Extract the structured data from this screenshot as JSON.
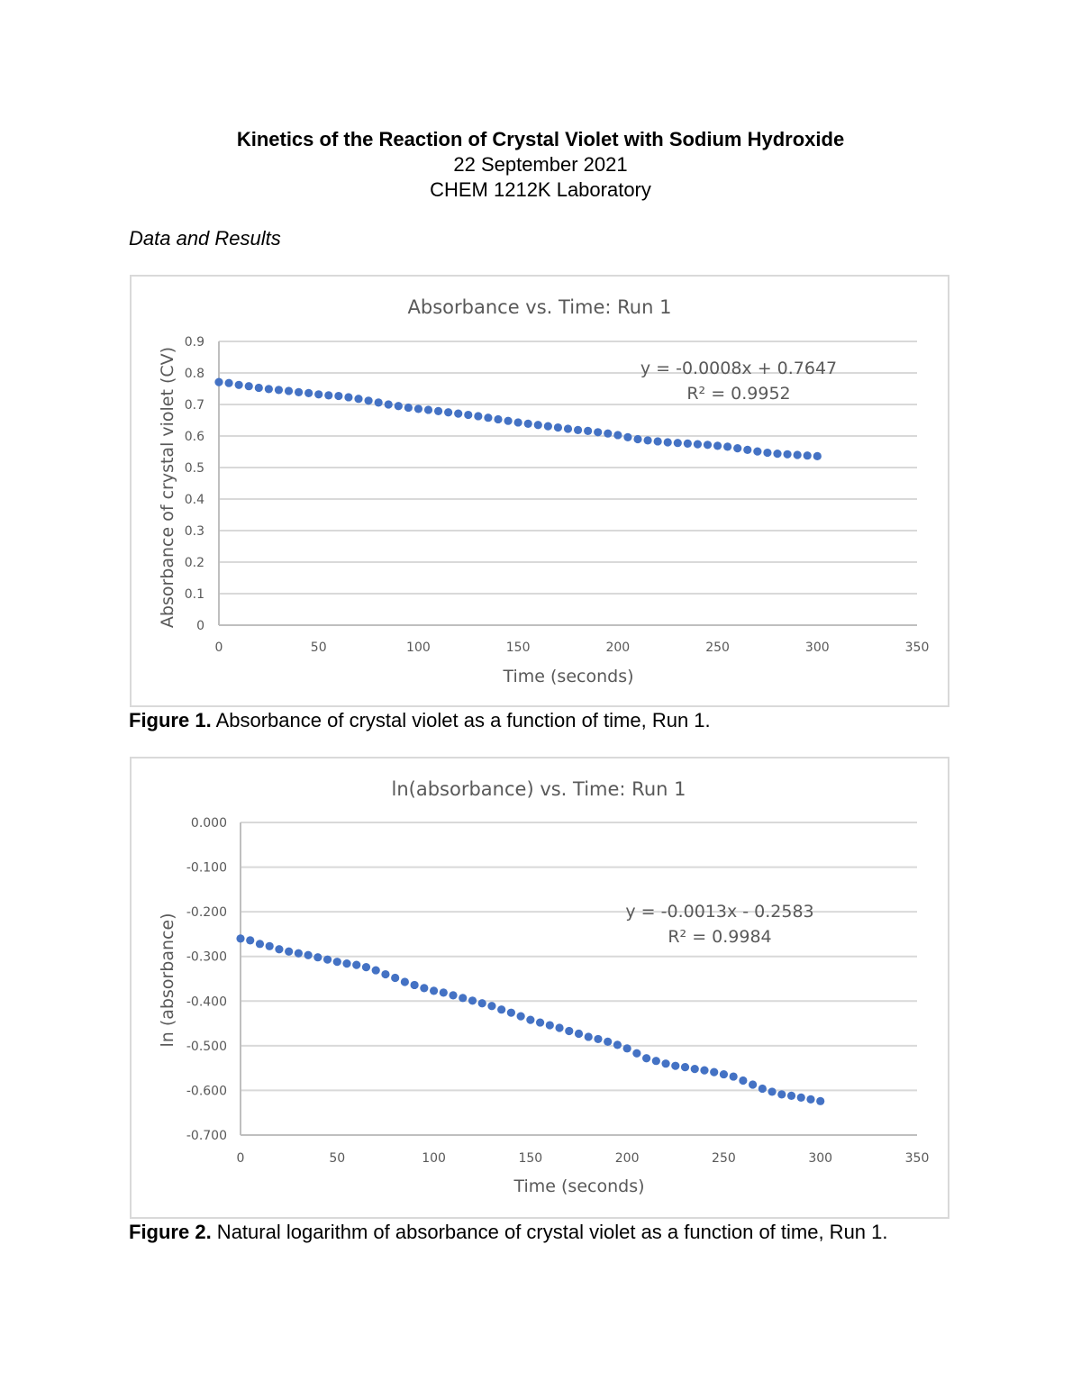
{
  "header": {
    "title": "Kinetics of the Reaction of Crystal Violet with Sodium Hydroxide",
    "date": "22 September 2021",
    "course": "CHEM 1212K Laboratory"
  },
  "section_heading": "Data and Results",
  "captions": [
    {
      "label": "Figure 1.",
      "text": " Absorbance of crystal violet as a function of time, Run 1."
    },
    {
      "label": "Figure 2.",
      "text": " Natural logarithm of absorbance of crystal violet as a function of time, Run 1."
    }
  ],
  "colors": {
    "marker": "#4472c4",
    "grid": "#d9d9d9",
    "axis": "#bfbfbf",
    "text": "#595959"
  },
  "chart_data": [
    {
      "type": "scatter",
      "title": "Absorbance vs. Time: Run 1",
      "xlabel": "Time (seconds)",
      "ylabel": "Absorbance of crystal violet (CV)",
      "xlim": [
        0,
        350
      ],
      "ylim": [
        0,
        0.9
      ],
      "xticks": [
        "0",
        "50",
        "100",
        "150",
        "200",
        "250",
        "300",
        "350"
      ],
      "yticks": [
        "0",
        "0.1",
        "0.2",
        "0.3",
        "0.4",
        "0.5",
        "0.6",
        "0.7",
        "0.8",
        "0.9"
      ],
      "grid": true,
      "trendline_equation": "y = -0.0008x + 0.7647",
      "r_squared": "R² = 0.9952",
      "x": [
        0,
        5,
        10,
        15,
        20,
        25,
        30,
        35,
        40,
        45,
        50,
        55,
        60,
        65,
        70,
        75,
        80,
        85,
        90,
        95,
        100,
        105,
        110,
        115,
        120,
        125,
        130,
        135,
        140,
        145,
        150,
        155,
        160,
        165,
        170,
        175,
        180,
        185,
        190,
        195,
        200,
        205,
        210,
        215,
        220,
        225,
        230,
        235,
        240,
        245,
        250,
        255,
        260,
        265,
        270,
        275,
        280,
        285,
        290,
        295,
        300
      ],
      "y": [
        0.771,
        0.768,
        0.762,
        0.758,
        0.753,
        0.749,
        0.746,
        0.743,
        0.739,
        0.736,
        0.732,
        0.729,
        0.727,
        0.723,
        0.718,
        0.712,
        0.706,
        0.7,
        0.695,
        0.69,
        0.686,
        0.683,
        0.679,
        0.675,
        0.671,
        0.667,
        0.663,
        0.658,
        0.653,
        0.648,
        0.643,
        0.639,
        0.635,
        0.631,
        0.627,
        0.623,
        0.619,
        0.616,
        0.612,
        0.608,
        0.603,
        0.596,
        0.59,
        0.586,
        0.583,
        0.58,
        0.578,
        0.576,
        0.574,
        0.572,
        0.569,
        0.566,
        0.561,
        0.556,
        0.551,
        0.547,
        0.544,
        0.542,
        0.54,
        0.538,
        0.536
      ]
    },
    {
      "type": "scatter",
      "title": "ln(absorbance) vs. Time: Run 1",
      "xlabel": "Time (seconds)",
      "ylabel": "ln (absorbance)",
      "xlim": [
        0,
        350
      ],
      "ylim": [
        -0.7,
        0
      ],
      "xticks": [
        "0",
        "50",
        "100",
        "150",
        "200",
        "250",
        "300",
        "350"
      ],
      "yticks": [
        "-0.700",
        "-0.600",
        "-0.500",
        "-0.400",
        "-0.300",
        "-0.200",
        "-0.100",
        "0.000"
      ],
      "grid": true,
      "trendline_equation": "y = -0.0013x - 0.2583",
      "r_squared": "R² = 0.9984",
      "x": [
        0,
        5,
        10,
        15,
        20,
        25,
        30,
        35,
        40,
        45,
        50,
        55,
        60,
        65,
        70,
        75,
        80,
        85,
        90,
        95,
        100,
        105,
        110,
        115,
        120,
        125,
        130,
        135,
        140,
        145,
        150,
        155,
        160,
        165,
        170,
        175,
        180,
        185,
        190,
        195,
        200,
        205,
        210,
        215,
        220,
        225,
        230,
        235,
        240,
        245,
        250,
        255,
        260,
        265,
        270,
        275,
        280,
        285,
        290,
        295,
        300
      ],
      "y": [
        -0.26,
        -0.264,
        -0.272,
        -0.277,
        -0.284,
        -0.289,
        -0.293,
        -0.297,
        -0.302,
        -0.307,
        -0.312,
        -0.316,
        -0.319,
        -0.324,
        -0.331,
        -0.34,
        -0.348,
        -0.357,
        -0.364,
        -0.371,
        -0.377,
        -0.381,
        -0.387,
        -0.393,
        -0.399,
        -0.405,
        -0.411,
        -0.419,
        -0.426,
        -0.434,
        -0.442,
        -0.448,
        -0.454,
        -0.46,
        -0.467,
        -0.473,
        -0.48,
        -0.485,
        -0.491,
        -0.498,
        -0.506,
        -0.517,
        -0.528,
        -0.534,
        -0.54,
        -0.545,
        -0.548,
        -0.552,
        -0.555,
        -0.559,
        -0.564,
        -0.569,
        -0.578,
        -0.587,
        -0.596,
        -0.603,
        -0.609,
        -0.612,
        -0.616,
        -0.62,
        -0.624
      ]
    }
  ]
}
